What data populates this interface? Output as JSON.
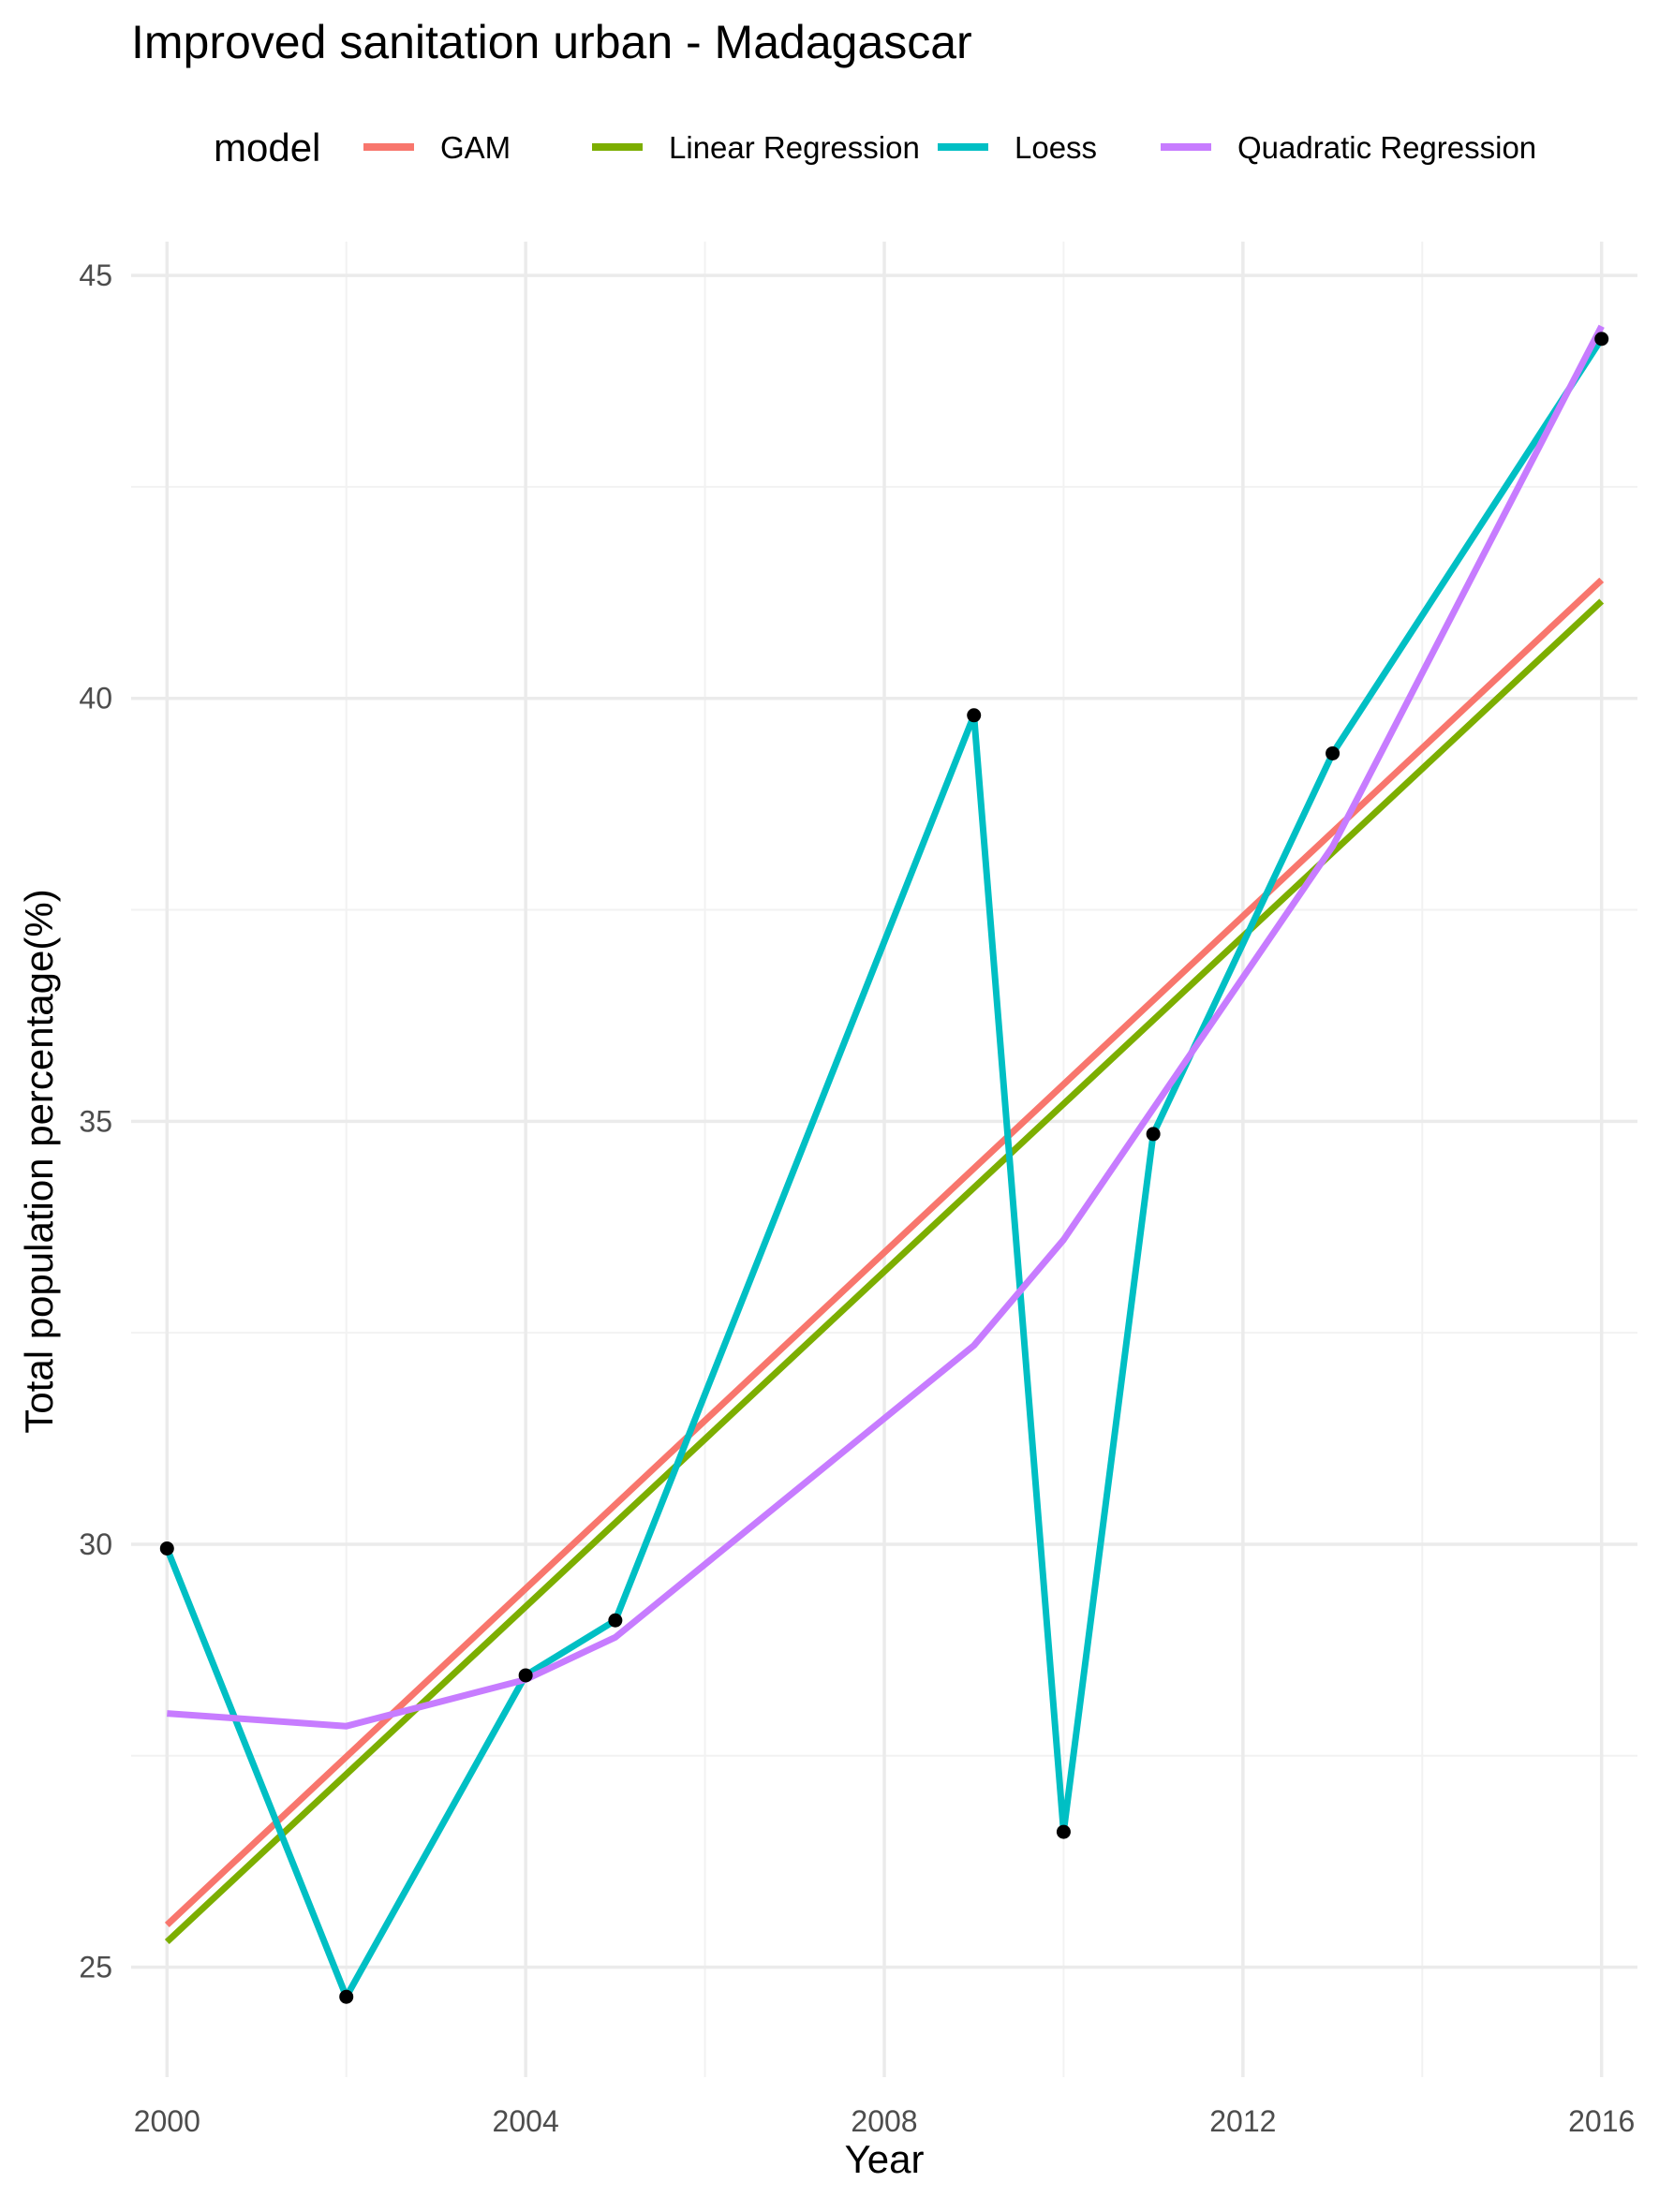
{
  "chart_data": {
    "type": "line",
    "title": "Improved sanitation urban - Madagascar",
    "xlabel": "Year",
    "ylabel": "Total population percentage(%)",
    "xlim": [
      1999.6,
      2016.4
    ],
    "ylim": [
      23.7,
      45.4
    ],
    "x_ticks": [
      2000,
      2004,
      2008,
      2012,
      2016
    ],
    "x_tick_labels": [
      "2000",
      "2004",
      "2008",
      "2012",
      "2016"
    ],
    "x_minor_ticks": [
      2002,
      2006,
      2010,
      2014
    ],
    "y_ticks": [
      25,
      30,
      35,
      40,
      45
    ],
    "y_tick_labels": [
      "25",
      "30",
      "35",
      "40",
      "45"
    ],
    "y_minor_ticks": [
      27.5,
      32.5,
      37.5,
      42.5
    ],
    "grid": true,
    "legend": {
      "title": "model",
      "position": "top"
    },
    "points": {
      "x": [
        2000,
        2002,
        2004,
        2005,
        2009,
        2010,
        2011,
        2013,
        2016
      ],
      "y": [
        29.95,
        24.65,
        28.45,
        29.1,
        39.8,
        26.6,
        34.85,
        39.35,
        44.25
      ],
      "color": "#000000"
    },
    "series": [
      {
        "name": "GAM",
        "color": "#F8766D",
        "x": [
          2000,
          2016
        ],
        "y": [
          25.5,
          41.4
        ]
      },
      {
        "name": "Linear Regression",
        "color": "#7CAE00",
        "x": [
          2000,
          2016
        ],
        "y": [
          25.3,
          41.15
        ]
      },
      {
        "name": "Loess",
        "color": "#00BFC4",
        "x": [
          2000,
          2002,
          2004,
          2005,
          2009,
          2010,
          2011,
          2013,
          2016
        ],
        "y": [
          29.95,
          24.65,
          28.45,
          29.1,
          39.8,
          26.6,
          34.85,
          39.35,
          44.25
        ]
      },
      {
        "name": "Quadratic Regression",
        "color": "#C77CFF",
        "x": [
          2000,
          2002,
          2004,
          2005,
          2009,
          2010,
          2011,
          2013,
          2016
        ],
        "y": [
          28.0,
          27.85,
          28.4,
          28.9,
          32.35,
          33.6,
          35.15,
          38.25,
          44.4
        ]
      }
    ]
  }
}
